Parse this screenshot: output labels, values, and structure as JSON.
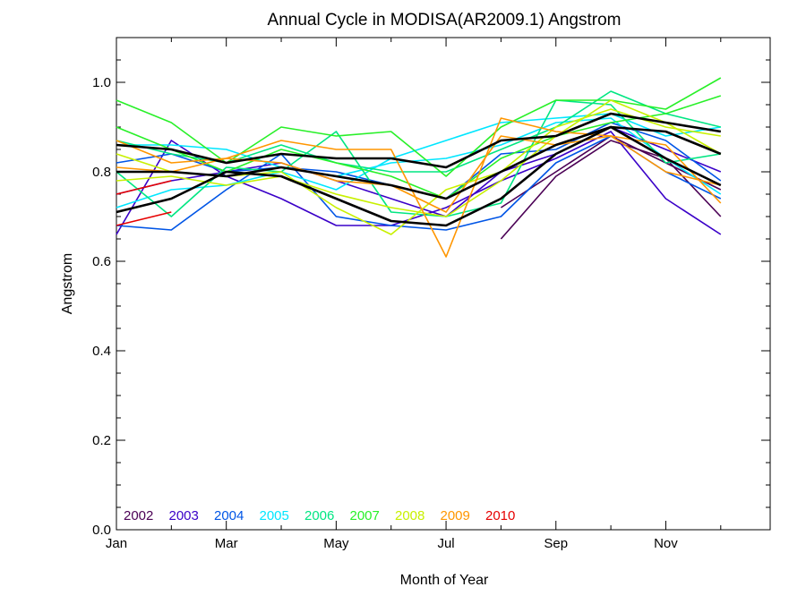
{
  "chart_data": {
    "type": "line",
    "title": "Annual Cycle in MODISA(AR2009.1) Angstrom",
    "xlabel": "Month of Year",
    "ylabel": "Angstrom",
    "xlim": [
      1,
      12.9
    ],
    "ylim": [
      0,
      1.1
    ],
    "x_ticks": [
      {
        "value": 1,
        "label": "Jan"
      },
      {
        "value": 3,
        "label": "Mar"
      },
      {
        "value": 5,
        "label": "May"
      },
      {
        "value": 7,
        "label": "Jul"
      },
      {
        "value": 9,
        "label": "Sep"
      },
      {
        "value": 11,
        "label": "Nov"
      }
    ],
    "y_ticks": [
      {
        "value": 0.0,
        "label": "0.0"
      },
      {
        "value": 0.2,
        "label": "0.2"
      },
      {
        "value": 0.4,
        "label": "0.4"
      },
      {
        "value": 0.6,
        "label": "0.6"
      },
      {
        "value": 0.8,
        "label": "0.8"
      },
      {
        "value": 1.0,
        "label": "1.0"
      }
    ],
    "legend_position": "bottom-left",
    "x": [
      1,
      2,
      3,
      4,
      5,
      6,
      7,
      8,
      9,
      10,
      11,
      12
    ],
    "series": [
      {
        "name": "2002",
        "color": "#4b0055",
        "values": [
          null,
          null,
          null,
          null,
          null,
          null,
          null,
          0.65,
          0.79,
          0.87,
          0.83,
          0.7
        ]
      },
      {
        "name": "",
        "color": "#4b0055",
        "values": [
          null,
          null,
          null,
          null,
          null,
          null,
          null,
          0.72,
          0.8,
          0.88,
          0.82,
          0.76
        ]
      },
      {
        "name": "2003",
        "color": "#3a00c8",
        "values": [
          0.66,
          0.87,
          0.79,
          0.74,
          0.68,
          0.68,
          0.72,
          0.78,
          0.83,
          0.89,
          0.74,
          0.66
        ]
      },
      {
        "name": "",
        "color": "#3a00c8",
        "values": [
          0.75,
          0.78,
          0.8,
          0.82,
          0.78,
          0.74,
          0.7,
          0.8,
          0.84,
          0.9,
          0.85,
          0.8
        ]
      },
      {
        "name": "2004",
        "color": "#0055e6",
        "values": [
          0.68,
          0.67,
          0.76,
          0.84,
          0.7,
          0.68,
          0.67,
          0.7,
          0.82,
          0.88,
          0.8,
          0.74
        ]
      },
      {
        "name": "",
        "color": "#0055e6",
        "values": [
          0.82,
          0.84,
          0.8,
          0.81,
          0.8,
          0.77,
          0.74,
          0.84,
          0.85,
          0.91,
          0.87,
          0.78
        ]
      },
      {
        "name": "2005",
        "color": "#00e6ff",
        "values": [
          0.72,
          0.76,
          0.77,
          0.8,
          0.76,
          0.83,
          0.87,
          0.91,
          0.92,
          0.93,
          0.88,
          0.9
        ]
      },
      {
        "name": "",
        "color": "#00e6ff",
        "values": [
          0.86,
          0.86,
          0.85,
          0.81,
          0.79,
          0.82,
          0.83,
          0.86,
          0.91,
          0.92,
          0.83,
          0.75
        ]
      },
      {
        "name": "2006",
        "color": "#00e682",
        "values": [
          0.8,
          0.7,
          0.81,
          0.8,
          0.89,
          0.71,
          0.7,
          0.73,
          0.96,
          0.95,
          0.82,
          0.84
        ]
      },
      {
        "name": "",
        "color": "#00e682",
        "values": [
          0.87,
          0.84,
          0.82,
          0.86,
          0.82,
          0.8,
          0.8,
          0.85,
          0.9,
          0.98,
          0.93,
          0.9
        ]
      },
      {
        "name": "2007",
        "color": "#28f028",
        "values": [
          0.96,
          0.91,
          0.82,
          0.9,
          0.88,
          0.89,
          0.79,
          0.9,
          0.96,
          0.96,
          0.94,
          1.01
        ]
      },
      {
        "name": "",
        "color": "#28f028",
        "values": [
          0.9,
          0.85,
          0.8,
          0.85,
          0.82,
          0.79,
          0.74,
          0.83,
          0.88,
          0.91,
          0.93,
          0.97
        ]
      },
      {
        "name": "2008",
        "color": "#c8f000",
        "values": [
          0.84,
          0.8,
          0.79,
          0.8,
          0.72,
          0.66,
          0.76,
          0.8,
          0.9,
          0.94,
          0.9,
          0.88
        ]
      },
      {
        "name": "",
        "color": "#c8f000",
        "values": [
          0.78,
          0.79,
          0.77,
          0.79,
          0.75,
          0.72,
          0.7,
          0.78,
          0.88,
          0.96,
          0.91,
          0.84
        ]
      },
      {
        "name": "2009",
        "color": "#ff9600",
        "values": [
          0.87,
          0.82,
          0.83,
          0.87,
          0.85,
          0.85,
          0.61,
          0.92,
          0.89,
          0.88,
          0.86,
          0.73
        ]
      },
      {
        "name": "",
        "color": "#ff9600",
        "values": [
          0.81,
          0.8,
          0.83,
          0.82,
          0.78,
          0.77,
          0.71,
          0.88,
          0.86,
          0.88,
          0.8,
          0.77
        ]
      },
      {
        "name": "2010",
        "color": "#e60000",
        "values": [
          0.68,
          0.71,
          null,
          null,
          null,
          null,
          null,
          null,
          null,
          null,
          null,
          null
        ]
      },
      {
        "name": "",
        "color": "#e60000",
        "values": [
          0.75,
          0.78,
          null,
          null,
          null,
          null,
          null,
          null,
          null,
          null,
          null,
          null
        ]
      },
      {
        "name": "",
        "color": "#000000",
        "values": [
          0.86,
          0.85,
          0.82,
          0.84,
          0.83,
          0.83,
          0.81,
          0.87,
          0.88,
          0.93,
          0.91,
          0.89
        ]
      },
      {
        "name": "",
        "color": "#000000",
        "values": [
          0.8,
          0.8,
          0.79,
          0.81,
          0.79,
          0.77,
          0.74,
          0.8,
          0.86,
          0.9,
          0.89,
          0.84
        ]
      },
      {
        "name": "",
        "color": "#000000",
        "values": [
          0.71,
          0.74,
          0.8,
          0.79,
          0.74,
          0.69,
          0.68,
          0.74,
          0.84,
          0.9,
          0.83,
          0.77
        ]
      }
    ]
  }
}
